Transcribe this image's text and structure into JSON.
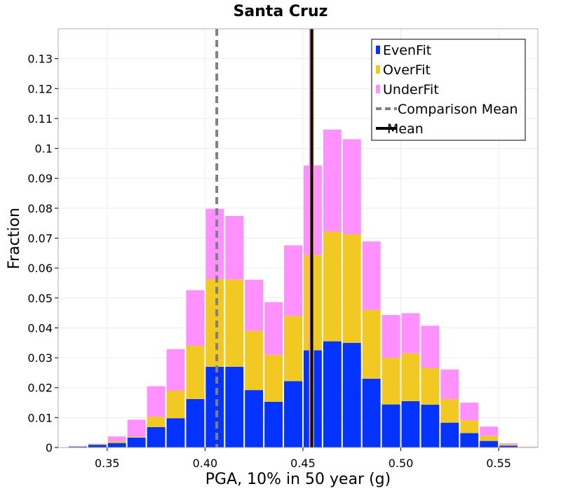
{
  "chart_data": {
    "type": "bar",
    "stacked": true,
    "title": "Santa Cruz",
    "xlabel": "PGA, 10% in 50 year (g)",
    "ylabel": "Fraction",
    "xlim": [
      0.325,
      0.57
    ],
    "ylim": [
      0,
      0.14
    ],
    "bin_width": 0.01,
    "x": [
      0.335,
      0.345,
      0.355,
      0.365,
      0.375,
      0.385,
      0.395,
      0.405,
      0.415,
      0.425,
      0.435,
      0.445,
      0.455,
      0.465,
      0.475,
      0.485,
      0.495,
      0.505,
      0.515,
      0.525,
      0.535,
      0.545,
      0.555,
      0.565
    ],
    "series": [
      {
        "name": "EvenFit",
        "color": "#0433ff",
        "values": [
          0.0003,
          0.0009,
          0.0015,
          0.0033,
          0.0068,
          0.0098,
          0.0162,
          0.027,
          0.027,
          0.0192,
          0.0153,
          0.0222,
          0.0325,
          0.0355,
          0.035,
          0.023,
          0.0144,
          0.0155,
          0.0143,
          0.0083,
          0.0048,
          0.0022,
          0.0006,
          0.0001
        ]
      },
      {
        "name": "OverFit",
        "color": "#f2c922",
        "values": [
          0.0001,
          0.0003,
          0.0006,
          0.0003,
          0.0035,
          0.0092,
          0.0178,
          0.0293,
          0.0292,
          0.0198,
          0.0157,
          0.0218,
          0.0319,
          0.0367,
          0.0363,
          0.023,
          0.0156,
          0.016,
          0.0123,
          0.0079,
          0.0043,
          0.0017,
          0.0004,
          0.0001
        ]
      },
      {
        "name": "UnderFit",
        "color": "#ff90ff",
        "values": [
          0.0001,
          0.0001,
          0.0016,
          0.0057,
          0.0102,
          0.0139,
          0.0186,
          0.0235,
          0.0212,
          0.0171,
          0.0176,
          0.0236,
          0.0299,
          0.0341,
          0.0318,
          0.0229,
          0.0143,
          0.0134,
          0.0141,
          0.0099,
          0.0059,
          0.0031,
          0.0004,
          0.0001
        ]
      }
    ],
    "lines": [
      {
        "name": "Comparison Mean",
        "x": 0.406,
        "color": "#808080",
        "dash": true
      },
      {
        "name": "Mean",
        "x": 0.4545,
        "color": "#000000",
        "dash": false
      }
    ],
    "component_means": [
      {
        "x": 0.4535,
        "color": "#ff90ff"
      },
      {
        "x": 0.4553,
        "color": "#f2c922"
      }
    ],
    "xticks": [
      0.35,
      0.4,
      0.45,
      0.5,
      0.55
    ],
    "xtick_labels": [
      "0.35",
      "0.40",
      "0.45",
      "0.50",
      "0.55"
    ],
    "yticks": [
      0,
      0.01,
      0.02,
      0.03,
      0.04,
      0.05,
      0.06,
      0.07,
      0.08,
      0.09,
      0.1,
      0.11,
      0.12,
      0.13
    ],
    "ytick_labels": [
      "0",
      "0.01",
      "0.02",
      "0.03",
      "0.04",
      "0.05",
      "0.06",
      "0.07",
      "0.08",
      "0.09",
      "0.1",
      "0.11",
      "0.12",
      "0.13"
    ],
    "legend": {
      "position": "top-right",
      "entries": [
        {
          "label": "EvenFit",
          "kind": "swatch",
          "color": "#0433ff"
        },
        {
          "label": "OverFit",
          "kind": "swatch",
          "color": "#f2c922"
        },
        {
          "label": "UnderFit",
          "kind": "swatch",
          "color": "#ff90ff"
        },
        {
          "label": "Comparison Mean",
          "kind": "dashed-line",
          "color": "#808080"
        },
        {
          "label": "Mean",
          "kind": "line",
          "color": "#000000"
        }
      ]
    },
    "grid": true
  }
}
